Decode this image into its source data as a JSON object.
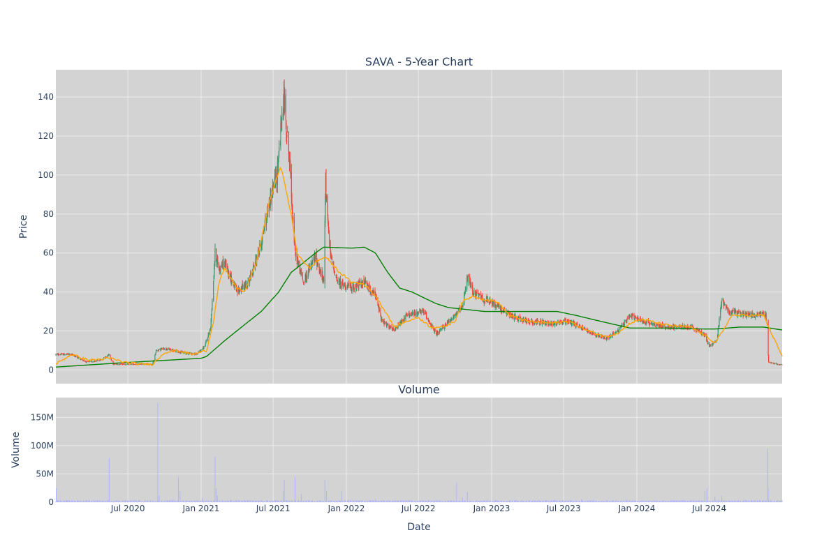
{
  "colors": {
    "plot_bg": "#d3d3d3",
    "grid": "#ebebeb",
    "increasing": "#3d9970",
    "decreasing": "#ff4136",
    "ma_short": "#ffa500",
    "ma_long": "#008000",
    "volume": "#b0b4ff",
    "text": "#2a3f5f"
  },
  "chart_data": [
    {
      "type": "candlestick",
      "title": "SAVA - 5-Year Chart",
      "ylabel": "Price",
      "xlabel": "",
      "x_range": [
        "2020-01-02",
        "2024-12-31"
      ],
      "ylim": [
        -7,
        154
      ],
      "yticks": [
        0,
        20,
        40,
        60,
        80,
        100,
        120,
        140
      ],
      "ytick_labels": [
        "0",
        "20",
        "40",
        "60",
        "80",
        "100",
        "120",
        "140"
      ],
      "grid": true,
      "legend": "none",
      "price_anchors": [
        [
          "2020-01-02",
          8
        ],
        [
          "2020-02-10",
          8
        ],
        [
          "2020-03-20",
          4
        ],
        [
          "2020-04-25",
          5
        ],
        [
          "2020-05-15",
          8
        ],
        [
          "2020-05-25",
          3
        ],
        [
          "2020-06-20",
          3
        ],
        [
          "2020-09-01",
          3
        ],
        [
          "2020-09-10",
          10
        ],
        [
          "2020-10-01",
          11
        ],
        [
          "2020-11-15",
          9
        ],
        [
          "2020-12-20",
          8
        ],
        [
          "2021-01-10",
          12
        ],
        [
          "2021-01-25",
          22
        ],
        [
          "2021-02-05",
          60
        ],
        [
          "2021-02-15",
          52
        ],
        [
          "2021-03-01",
          55
        ],
        [
          "2021-04-01",
          40
        ],
        [
          "2021-05-01",
          45
        ],
        [
          "2021-06-01",
          65
        ],
        [
          "2021-06-20",
          85
        ],
        [
          "2021-07-10",
          100
        ],
        [
          "2021-07-28",
          140
        ],
        [
          "2021-08-10",
          110
        ],
        [
          "2021-08-25",
          60
        ],
        [
          "2021-09-15",
          45
        ],
        [
          "2021-10-15",
          58
        ],
        [
          "2021-11-05",
          45
        ],
        [
          "2021-11-10",
          98
        ],
        [
          "2021-11-20",
          60
        ],
        [
          "2021-12-10",
          45
        ],
        [
          "2022-01-15",
          42
        ],
        [
          "2022-02-15",
          45
        ],
        [
          "2022-03-15",
          38
        ],
        [
          "2022-04-01",
          25
        ],
        [
          "2022-05-01",
          20
        ],
        [
          "2022-06-01",
          28
        ],
        [
          "2022-07-15",
          30
        ],
        [
          "2022-08-15",
          18
        ],
        [
          "2022-09-15",
          25
        ],
        [
          "2022-10-20",
          32
        ],
        [
          "2022-11-01",
          48
        ],
        [
          "2022-11-15",
          40
        ],
        [
          "2022-12-15",
          36
        ],
        [
          "2023-01-15",
          33
        ],
        [
          "2023-02-15",
          28
        ],
        [
          "2023-04-01",
          25
        ],
        [
          "2023-06-01",
          24
        ],
        [
          "2023-07-15",
          25
        ],
        [
          "2023-09-01",
          20
        ],
        [
          "2023-10-15",
          16
        ],
        [
          "2023-11-15",
          20
        ],
        [
          "2023-12-15",
          28
        ],
        [
          "2024-01-15",
          25
        ],
        [
          "2024-03-15",
          22
        ],
        [
          "2024-05-15",
          22
        ],
        [
          "2024-06-20",
          18
        ],
        [
          "2024-07-01",
          12
        ],
        [
          "2024-07-20",
          15
        ],
        [
          "2024-08-01",
          36
        ],
        [
          "2024-08-20",
          30
        ],
        [
          "2024-10-15",
          28
        ],
        [
          "2024-11-20",
          29
        ],
        [
          "2024-11-27",
          4
        ],
        [
          "2024-12-31",
          2.5
        ]
      ],
      "ma_short": [
        [
          "2020-01-02",
          3
        ],
        [
          "2020-02-10",
          8
        ],
        [
          "2020-03-25",
          5
        ],
        [
          "2020-05-20",
          6
        ],
        [
          "2020-06-20",
          4
        ],
        [
          "2020-08-01",
          3
        ],
        [
          "2020-09-01",
          3
        ],
        [
          "2020-10-01",
          9
        ],
        [
          "2020-11-01",
          10
        ],
        [
          "2020-12-10",
          8
        ],
        [
          "2021-01-15",
          10
        ],
        [
          "2021-02-01",
          25
        ],
        [
          "2021-02-15",
          45
        ],
        [
          "2021-03-01",
          52
        ],
        [
          "2021-04-01",
          42
        ],
        [
          "2021-04-20",
          40
        ],
        [
          "2021-05-20",
          55
        ],
        [
          "2021-06-20",
          85
        ],
        [
          "2021-07-20",
          105
        ],
        [
          "2021-08-15",
          80
        ],
        [
          "2021-08-30",
          60
        ],
        [
          "2021-09-30",
          52
        ],
        [
          "2021-10-20",
          56
        ],
        [
          "2021-11-10",
          58
        ],
        [
          "2021-12-15",
          50
        ],
        [
          "2022-01-15",
          45
        ],
        [
          "2022-02-15",
          44
        ],
        [
          "2022-03-15",
          38
        ],
        [
          "2022-04-15",
          28
        ],
        [
          "2022-05-01",
          22
        ],
        [
          "2022-06-01",
          25
        ],
        [
          "2022-07-01",
          27
        ],
        [
          "2022-08-01",
          22
        ],
        [
          "2022-09-01",
          22
        ],
        [
          "2022-10-01",
          25
        ],
        [
          "2022-10-20",
          35
        ],
        [
          "2022-11-15",
          38
        ],
        [
          "2022-12-15",
          36
        ],
        [
          "2023-01-15",
          35
        ],
        [
          "2023-02-15",
          28
        ],
        [
          "2023-04-01",
          25
        ],
        [
          "2023-06-01",
          24
        ],
        [
          "2023-07-15",
          25
        ],
        [
          "2023-09-01",
          20
        ],
        [
          "2023-10-15",
          17
        ],
        [
          "2023-11-15",
          19
        ],
        [
          "2023-12-15",
          24
        ],
        [
          "2024-01-15",
          26
        ],
        [
          "2024-03-15",
          23
        ],
        [
          "2024-05-15",
          22
        ],
        [
          "2024-06-25",
          17
        ],
        [
          "2024-07-15",
          14
        ],
        [
          "2024-08-05",
          20
        ],
        [
          "2024-08-25",
          28
        ],
        [
          "2024-10-15",
          28
        ],
        [
          "2024-11-15",
          28
        ],
        [
          "2024-11-27",
          22
        ],
        [
          "2024-12-31",
          7
        ]
      ],
      "ma_long": [
        [
          "2020-01-02",
          1.5
        ],
        [
          "2020-06-01",
          3.5
        ],
        [
          "2021-01-01",
          6
        ],
        [
          "2021-01-15",
          7
        ],
        [
          "2021-03-01",
          15
        ],
        [
          "2021-05-01",
          25
        ],
        [
          "2021-06-01",
          30
        ],
        [
          "2021-07-15",
          40
        ],
        [
          "2021-08-15",
          50
        ],
        [
          "2021-09-15",
          55
        ],
        [
          "2021-10-15",
          60
        ],
        [
          "2021-11-05",
          63
        ],
        [
          "2022-01-15",
          62.5
        ],
        [
          "2022-02-15",
          63
        ],
        [
          "2022-03-15",
          60
        ],
        [
          "2022-04-15",
          50
        ],
        [
          "2022-05-15",
          42
        ],
        [
          "2022-06-15",
          40
        ],
        [
          "2022-07-15",
          37
        ],
        [
          "2022-08-15",
          34
        ],
        [
          "2022-09-15",
          32
        ],
        [
          "2022-12-15",
          30
        ],
        [
          "2023-02-15",
          30
        ],
        [
          "2023-04-15",
          30
        ],
        [
          "2023-06-15",
          30
        ],
        [
          "2023-08-01",
          28
        ],
        [
          "2023-10-01",
          25
        ],
        [
          "2023-12-15",
          21.5
        ],
        [
          "2024-03-15",
          21.5
        ],
        [
          "2024-06-15",
          21
        ],
        [
          "2024-07-15",
          21
        ],
        [
          "2024-09-15",
          22
        ],
        [
          "2024-11-15",
          22
        ],
        [
          "2024-12-31",
          20.5
        ]
      ]
    },
    {
      "type": "bar",
      "title": "Volume",
      "xlabel": "Date",
      "ylabel": "Volume",
      "x_range": [
        "2020-01-02",
        "2024-12-31"
      ],
      "ylim": [
        0,
        185000000
      ],
      "yticks": [
        0,
        50000000,
        100000000,
        150000000
      ],
      "ytick_labels": [
        "0",
        "50M",
        "100M",
        "150M"
      ],
      "xticks": [
        "2020-07-01",
        "2021-01-01",
        "2021-07-01",
        "2022-01-01",
        "2022-07-01",
        "2023-01-01",
        "2023-07-01",
        "2024-01-01",
        "2024-07-01"
      ],
      "xtick_labels": [
        "Jul 2020",
        "Jan 2021",
        "Jul 2021",
        "Jan 2022",
        "Jul 2022",
        "Jan 2023",
        "Jul 2023",
        "Jan 2024",
        "Jul 2024"
      ],
      "base_volume": 2000000,
      "spikes": [
        [
          "2020-01-03",
          25000000
        ],
        [
          "2020-05-10",
          45000000
        ],
        [
          "2020-05-15",
          78000000
        ],
        [
          "2020-06-20",
          8000000
        ],
        [
          "2020-09-14",
          175000000
        ],
        [
          "2020-09-18",
          12000000
        ],
        [
          "2020-11-05",
          45000000
        ],
        [
          "2020-11-09",
          20000000
        ],
        [
          "2021-01-04",
          8000000
        ],
        [
          "2021-02-05",
          80000000
        ],
        [
          "2021-02-08",
          25000000
        ],
        [
          "2021-02-11",
          12000000
        ],
        [
          "2021-07-26",
          20000000
        ],
        [
          "2021-07-29",
          40000000
        ],
        [
          "2021-08-25",
          45000000
        ],
        [
          "2021-09-10",
          15000000
        ],
        [
          "2021-10-10",
          12000000
        ],
        [
          "2021-11-08",
          40000000
        ],
        [
          "2021-11-12",
          20000000
        ],
        [
          "2021-12-20",
          20000000
        ],
        [
          "2022-03-15",
          6000000
        ],
        [
          "2022-10-05",
          35000000
        ],
        [
          "2022-10-20",
          8000000
        ],
        [
          "2022-11-01",
          18000000
        ],
        [
          "2023-01-15",
          8000000
        ],
        [
          "2023-08-15",
          5000000
        ],
        [
          "2024-06-20",
          20000000
        ],
        [
          "2024-06-25",
          25000000
        ],
        [
          "2024-07-15",
          10000000
        ],
        [
          "2024-08-01",
          12000000
        ],
        [
          "2024-11-25",
          95000000
        ],
        [
          "2024-11-26",
          25000000
        ]
      ]
    }
  ]
}
